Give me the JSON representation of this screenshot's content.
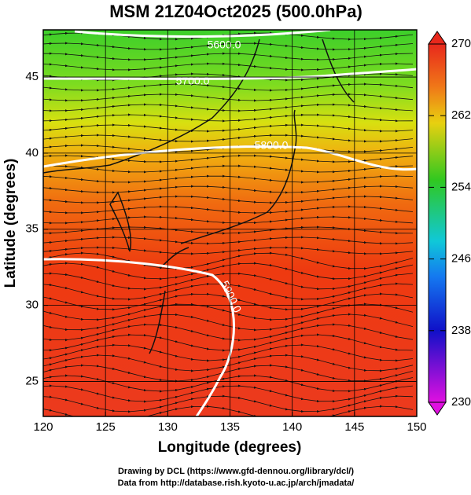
{
  "map": {
    "title": "MSM 21Z04Oct2025 (500.0hPa)",
    "x_label": "Longitude (degrees)",
    "y_label": "Latitude  (degrees)",
    "xlim": [
      120,
      150
    ],
    "ylim": [
      22.7,
      48.1
    ],
    "xticks": [
      120,
      125,
      130,
      135,
      140,
      145,
      150
    ],
    "yticks": [
      25,
      30,
      35,
      40,
      45
    ],
    "grid": true,
    "colorbar": {
      "lim": [
        230,
        270
      ],
      "ticks": [
        230,
        238,
        246,
        254,
        262,
        270
      ]
    },
    "contour_labels": [
      "5600.0",
      "5700.0",
      "5800.0",
      "5900.0"
    ],
    "credits": [
      "Drawing by DCL (https://www.gfd-dennou.org/library/dcl/)",
      "Data from http://database.rish.kyoto-u.ac.jp/arch/jmadata/"
    ]
  }
}
